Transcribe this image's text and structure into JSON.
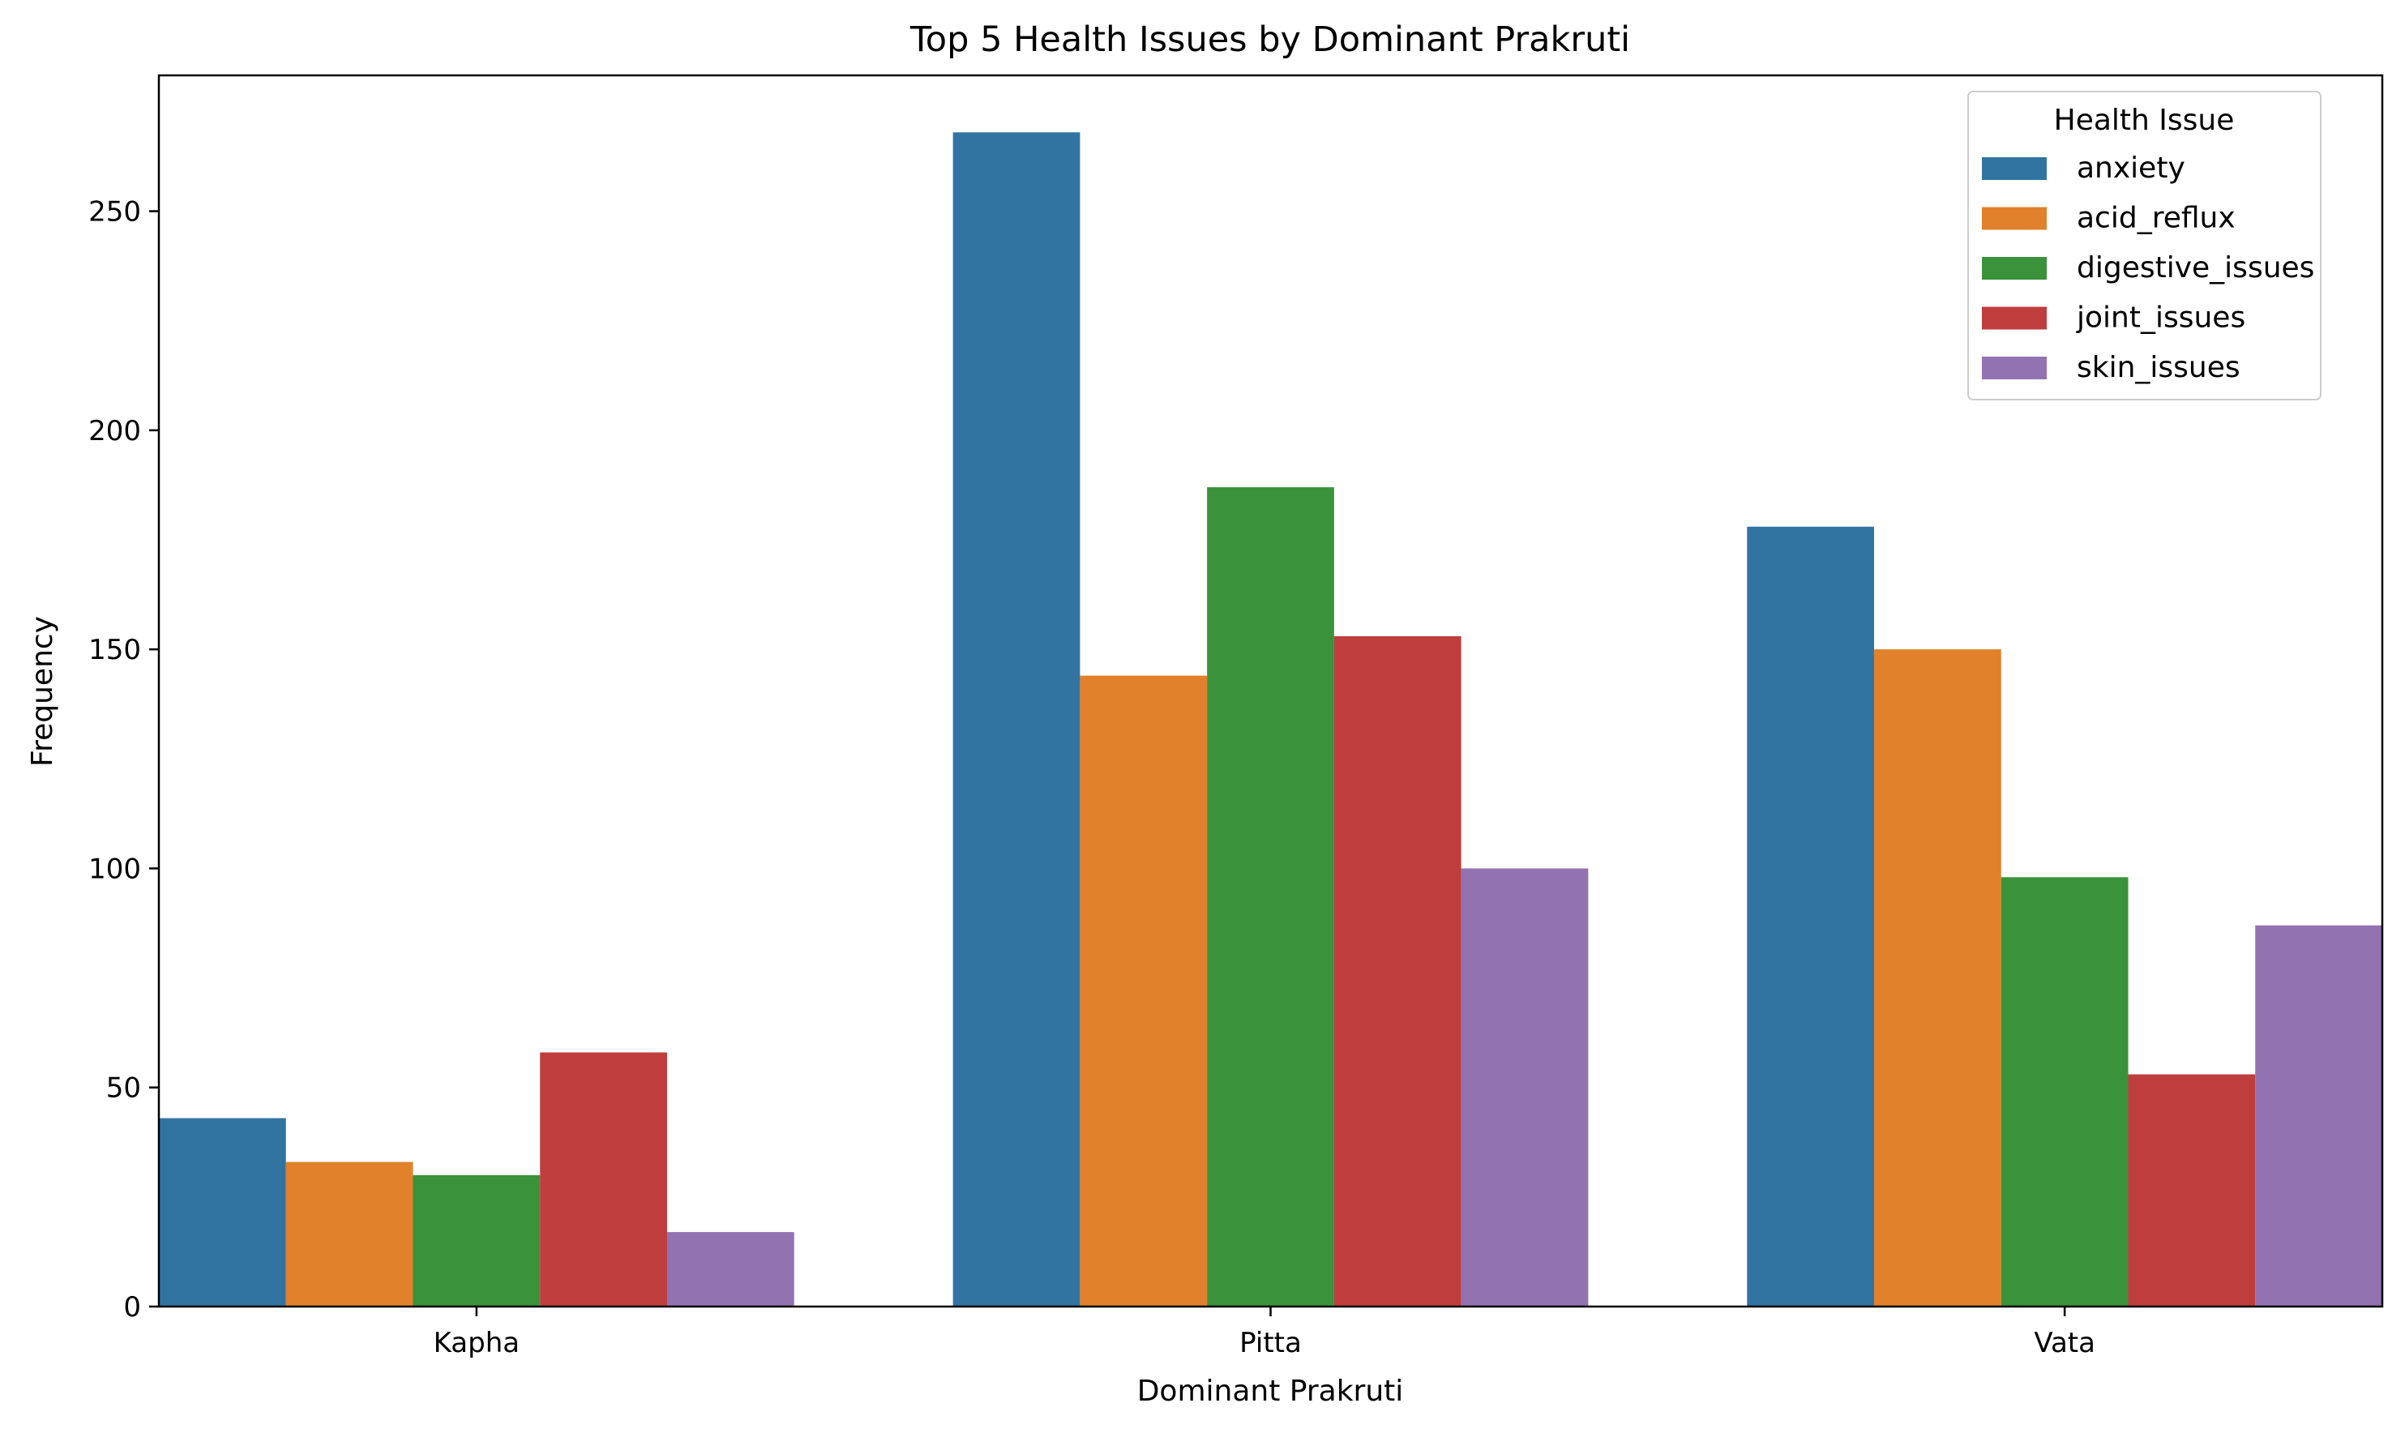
{
  "chart_data": {
    "type": "bar",
    "title": "Top 5 Health Issues by Dominant Prakruti",
    "xlabel": "Dominant Prakruti",
    "ylabel": "Frequency",
    "categories": [
      "Kapha",
      "Pitta",
      "Vata"
    ],
    "series": [
      {
        "name": "anxiety",
        "color": "#3274a1",
        "values": [
          43,
          268,
          178
        ]
      },
      {
        "name": "acid_reflux",
        "color": "#e1812c",
        "values": [
          33,
          144,
          150
        ]
      },
      {
        "name": "digestive_issues",
        "color": "#3a923a",
        "values": [
          30,
          187,
          98
        ]
      },
      {
        "name": "joint_issues",
        "color": "#c03d3e",
        "values": [
          58,
          153,
          53
        ]
      },
      {
        "name": "skin_issues",
        "color": "#9372b2",
        "values": [
          17,
          100,
          87
        ]
      }
    ],
    "ylim": [
      0,
      281
    ],
    "yticks": [
      0,
      50,
      100,
      150,
      200,
      250
    ],
    "grid": false,
    "legend": {
      "title": "Health Issue",
      "placement": "top-right"
    }
  }
}
